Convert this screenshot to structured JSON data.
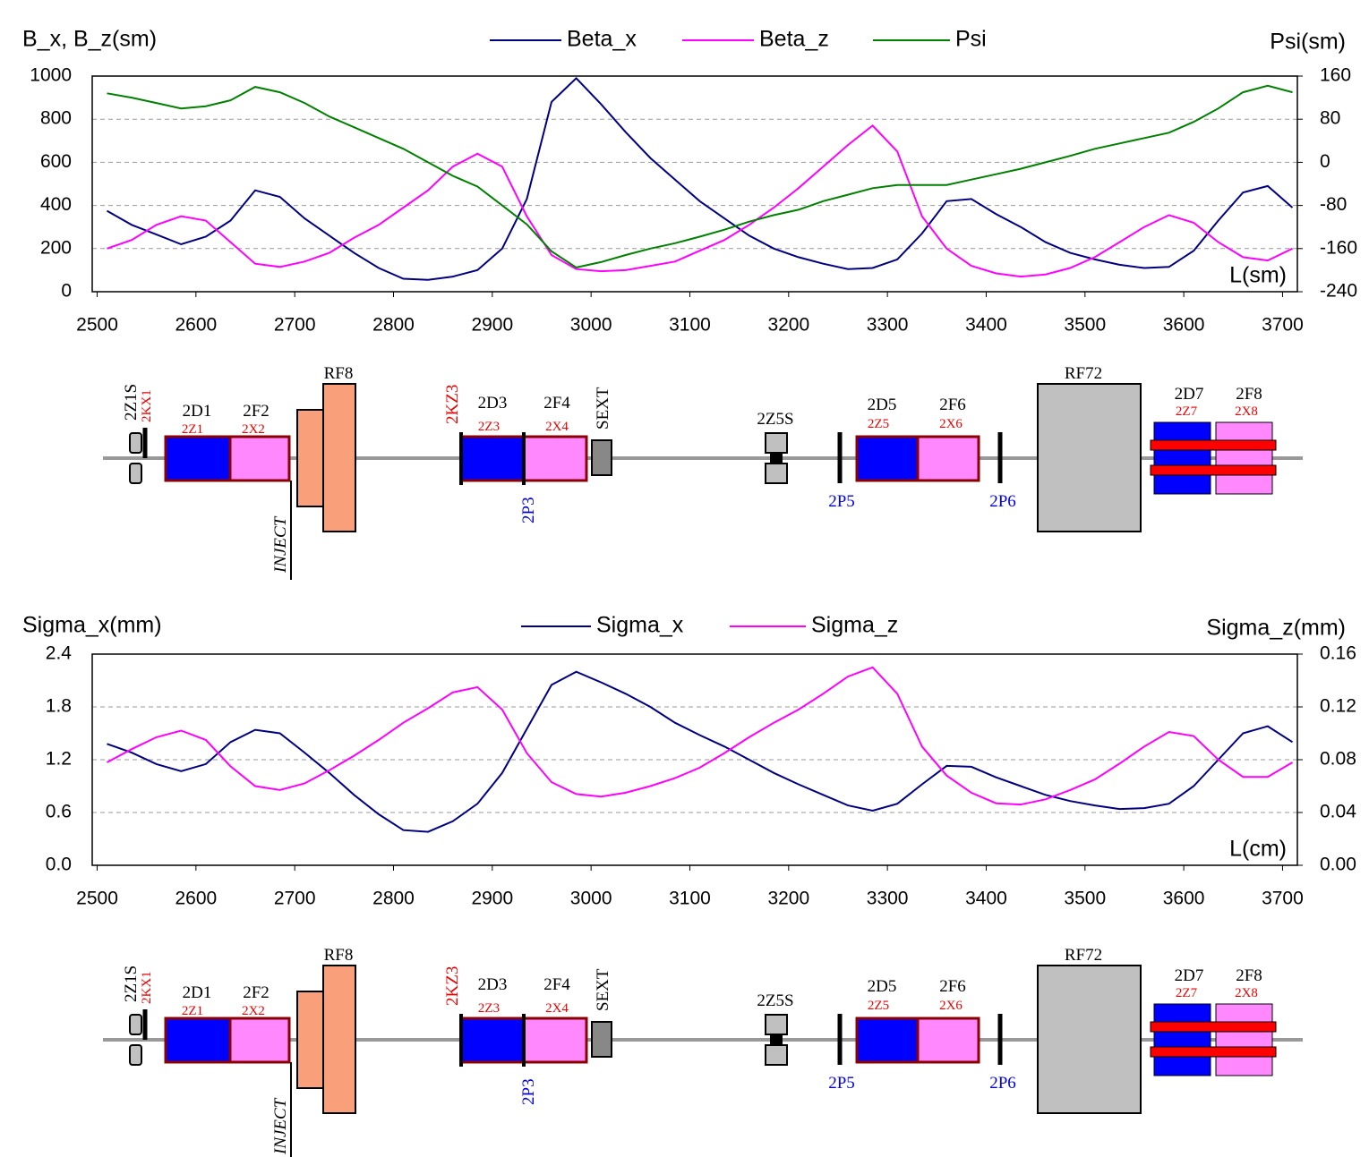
{
  "chart_data": [
    {
      "type": "line",
      "ylabel": "B_x, B_z(sm)",
      "y2label": "Psi(sm)",
      "xlabel": "L(sm)",
      "legend": "top",
      "grid": true,
      "x": [
        2510,
        2535,
        2560,
        2585,
        2610,
        2635,
        2660,
        2685,
        2710,
        2735,
        2760,
        2785,
        2810,
        2835,
        2860,
        2885,
        2910,
        2935,
        2960,
        2985,
        3010,
        3035,
        3060,
        3085,
        3110,
        3135,
        3160,
        3185,
        3210,
        3235,
        3260,
        3285,
        3310,
        3335,
        3360,
        3385,
        3410,
        3435,
        3460,
        3485,
        3510,
        3535,
        3560,
        3585,
        3610,
        3635,
        3660,
        3685,
        3710
      ],
      "series": [
        {
          "name": "Beta_x",
          "color": "#000080",
          "values": [
            375,
            310,
            265,
            220,
            255,
            330,
            470,
            440,
            340,
            260,
            180,
            110,
            60,
            55,
            70,
            100,
            200,
            430,
            880,
            990,
            870,
            740,
            620,
            520,
            420,
            340,
            260,
            200,
            160,
            130,
            105,
            110,
            150,
            270,
            420,
            430,
            360,
            300,
            230,
            180,
            150,
            125,
            110,
            115,
            190,
            330,
            460,
            490,
            390
          ]
        },
        {
          "name": "Beta_z",
          "color": "#ff00ff",
          "values": [
            200,
            240,
            310,
            350,
            330,
            230,
            130,
            115,
            140,
            180,
            250,
            310,
            390,
            470,
            580,
            640,
            580,
            350,
            170,
            105,
            95,
            100,
            120,
            140,
            190,
            240,
            310,
            390,
            480,
            580,
            680,
            770,
            650,
            350,
            200,
            120,
            85,
            70,
            80,
            110,
            160,
            230,
            300,
            355,
            320,
            230,
            160,
            145,
            200
          ]
        },
        {
          "name": "Psi",
          "color": "#008000",
          "axis": "y2",
          "values": [
            128,
            120,
            110,
            100,
            104,
            115,
            140,
            130,
            110,
            85,
            65,
            45,
            25,
            0,
            -25,
            -45,
            -80,
            -115,
            -165,
            -195,
            -185,
            -172,
            -160,
            -150,
            -138,
            -125,
            -110,
            -98,
            -88,
            -72,
            -60,
            -48,
            -42,
            -42,
            -42,
            -32,
            -22,
            -12,
            0,
            12,
            25,
            35,
            45,
            55,
            75,
            100,
            130,
            142,
            130
          ]
        }
      ],
      "xlim": [
        2495,
        3715
      ],
      "xticks": [
        2500,
        2600,
        2700,
        2800,
        2900,
        3000,
        3100,
        3200,
        3300,
        3400,
        3500,
        3600,
        3700
      ],
      "ylim": [
        0,
        1000
      ],
      "yticks": [
        0,
        200,
        400,
        600,
        800,
        1000
      ],
      "y2lim": [
        -240,
        160
      ],
      "y2ticks": [
        -240,
        -160,
        -80,
        0,
        80,
        160
      ]
    },
    {
      "type": "line",
      "ylabel": "Sigma_x(mm)",
      "y2label": "Sigma_z(mm)",
      "xlabel": "L(cm)",
      "legend": "top",
      "grid": true,
      "x": [
        2510,
        2535,
        2560,
        2585,
        2610,
        2635,
        2660,
        2685,
        2710,
        2735,
        2760,
        2785,
        2810,
        2835,
        2860,
        2885,
        2910,
        2935,
        2960,
        2985,
        3010,
        3035,
        3060,
        3085,
        3110,
        3135,
        3160,
        3185,
        3210,
        3235,
        3260,
        3285,
        3310,
        3335,
        3360,
        3385,
        3410,
        3435,
        3460,
        3485,
        3510,
        3535,
        3560,
        3585,
        3610,
        3635,
        3660,
        3685,
        3710
      ],
      "series": [
        {
          "name": "Sigma_x",
          "color": "#000080",
          "values": [
            1.38,
            1.28,
            1.15,
            1.07,
            1.15,
            1.4,
            1.54,
            1.5,
            1.28,
            1.05,
            0.8,
            0.58,
            0.4,
            0.38,
            0.5,
            0.7,
            1.05,
            1.55,
            2.05,
            2.2,
            2.08,
            1.95,
            1.8,
            1.62,
            1.48,
            1.35,
            1.2,
            1.05,
            0.92,
            0.8,
            0.68,
            0.62,
            0.7,
            0.92,
            1.13,
            1.12,
            1.0,
            0.9,
            0.8,
            0.73,
            0.68,
            0.64,
            0.65,
            0.7,
            0.9,
            1.2,
            1.5,
            1.58,
            1.4
          ]
        },
        {
          "name": "Sigma_z",
          "color": "#ff00ff",
          "axis": "y2",
          "values": [
            0.078,
            0.088,
            0.097,
            0.102,
            0.095,
            0.075,
            0.06,
            0.057,
            0.062,
            0.072,
            0.083,
            0.095,
            0.108,
            0.119,
            0.131,
            0.135,
            0.118,
            0.085,
            0.063,
            0.054,
            0.052,
            0.055,
            0.06,
            0.066,
            0.074,
            0.085,
            0.097,
            0.108,
            0.118,
            0.13,
            0.143,
            0.15,
            0.13,
            0.09,
            0.068,
            0.055,
            0.047,
            0.046,
            0.05,
            0.057,
            0.065,
            0.077,
            0.09,
            0.101,
            0.098,
            0.08,
            0.067,
            0.067,
            0.078
          ]
        }
      ],
      "xlim": [
        2495,
        3715
      ],
      "xticks": [
        2500,
        2600,
        2700,
        2800,
        2900,
        3000,
        3100,
        3200,
        3300,
        3400,
        3500,
        3600,
        3700
      ],
      "ylim": [
        0,
        2.4
      ],
      "yticks": [
        {
          "value": 0,
          "label": "0.0"
        },
        0.6,
        1.2,
        1.8,
        2.4
      ],
      "y2lim": [
        0,
        0.16
      ],
      "y2ticks": [
        {
          "value": 0,
          "label": "0.00"
        },
        {
          "value": 0.04,
          "label": "0.04"
        },
        {
          "value": 0.08,
          "label": "0.08"
        },
        {
          "value": 0.12,
          "label": "0.12"
        },
        {
          "value": 0.16,
          "label": "0.16"
        }
      ]
    }
  ],
  "lattice": {
    "labels": [
      "2Z1S",
      "2KX1",
      "2D1",
      "2Z1",
      "2F2",
      "2X2",
      "INJECT",
      "RF8",
      "2KZ3",
      "2D3",
      "2Z3",
      "2F4",
      "2X4",
      "SEXT",
      "2P3",
      "2Z5S",
      "2P5",
      "2D5",
      "2Z5",
      "2F6",
      "2X6",
      "2P6",
      "RF72",
      "2D7",
      "2Z7",
      "2F8",
      "2X8"
    ]
  }
}
